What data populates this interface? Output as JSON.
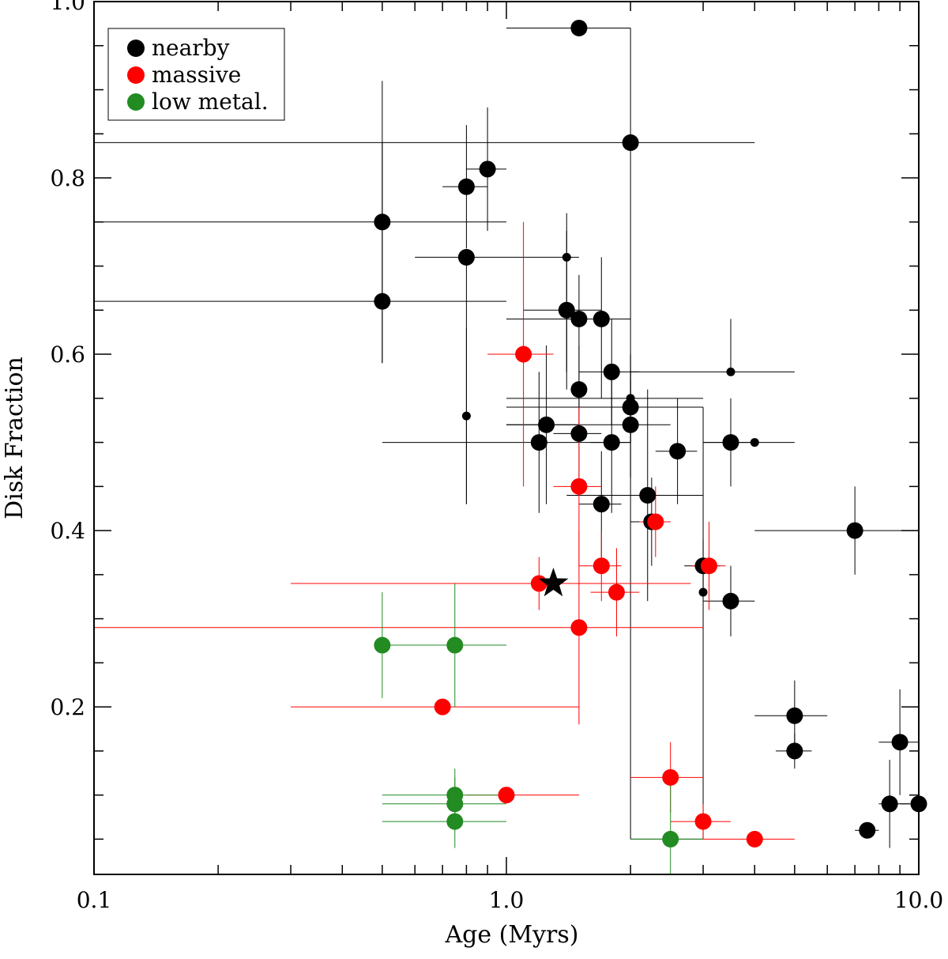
{
  "chart_data": {
    "type": "scatter",
    "title": "",
    "xlabel": "Age (Myrs)",
    "ylabel": "Disk Fraction",
    "xscale": "log",
    "xlim": [
      0.1,
      10.0
    ],
    "ylim": [
      0.01,
      1.0
    ],
    "x_ticks": [
      {
        "value": 0.1,
        "label": "0.1"
      },
      {
        "value": 1.0,
        "label": "1.0"
      },
      {
        "value": 10.0,
        "label": "10.0"
      }
    ],
    "y_ticks": [
      {
        "value": 0.2,
        "label": "0.2"
      },
      {
        "value": 0.4,
        "label": "0.4"
      },
      {
        "value": 0.6,
        "label": "0.6"
      },
      {
        "value": 0.8,
        "label": "0.8"
      },
      {
        "value": 1.0,
        "label": "1.0"
      }
    ],
    "legend": {
      "position": "top-left",
      "entries": [
        {
          "label": "nearby",
          "color": "#000000"
        },
        {
          "label": "massive",
          "color": "#ff0000"
        },
        {
          "label": "low metal.",
          "color": "#228b22"
        }
      ]
    },
    "series": [
      {
        "name": "nearby",
        "color": "#000000",
        "points": [
          {
            "x": 1.5,
            "y": 0.97,
            "xerr": [
              1.0,
              2.0
            ],
            "yerr": [
              0.97,
              0.97
            ],
            "size": "large"
          },
          {
            "x": 2.0,
            "y": 0.84,
            "xerr": [
              0.1,
              4.0
            ],
            "yerr": [
              0.84,
              0.84
            ],
            "size": "large"
          },
          {
            "x": 0.5,
            "y": 0.75,
            "xerr": [
              0.1,
              1.0
            ],
            "yerr": [
              0.59,
              0.91
            ],
            "size": "large"
          },
          {
            "x": 0.5,
            "y": 0.66,
            "xerr": [
              0.1,
              1.0
            ],
            "yerr": [
              0.59,
              0.84
            ],
            "size": "large"
          },
          {
            "x": 0.8,
            "y": 0.79,
            "xerr": [
              0.7,
              0.9
            ],
            "yerr": [
              0.72,
              0.86
            ],
            "size": "large"
          },
          {
            "x": 0.9,
            "y": 0.81,
            "xerr": [
              0.8,
              1.0
            ],
            "yerr": [
              0.74,
              0.88
            ],
            "size": "large"
          },
          {
            "x": 0.8,
            "y": 0.71,
            "xerr": [
              0.6,
              1.5
            ],
            "yerr": [
              0.43,
              0.71
            ],
            "size": "large"
          },
          {
            "x": 0.8,
            "y": 0.53,
            "xerr": [
              0.8,
              0.8
            ],
            "yerr": [
              0.43,
              0.63
            ],
            "size": "small"
          },
          {
            "x": 1.4,
            "y": 0.71,
            "xerr": [
              1.4,
              1.4
            ],
            "yerr": [
              0.58,
              0.76
            ],
            "size": "small"
          },
          {
            "x": 1.4,
            "y": 0.65,
            "xerr": [
              1.1,
              1.7
            ],
            "yerr": [
              0.56,
              0.74
            ],
            "size": "large"
          },
          {
            "x": 1.5,
            "y": 0.64,
            "xerr": [
              1.0,
              2.0
            ],
            "yerr": [
              0.57,
              0.69
            ],
            "size": "large"
          },
          {
            "x": 1.7,
            "y": 0.64,
            "xerr": [
              1.2,
              2.0
            ],
            "yerr": [
              0.55,
              0.71
            ],
            "size": "large"
          },
          {
            "x": 1.8,
            "y": 0.58,
            "xerr": [
              1.5,
              2.1
            ],
            "yerr": [
              0.52,
              0.64
            ],
            "size": "large"
          },
          {
            "x": 1.5,
            "y": 0.56,
            "xerr": [
              1.5,
              1.5
            ],
            "yerr": [
              0.51,
              0.61
            ],
            "size": "large"
          },
          {
            "x": 1.25,
            "y": 0.52,
            "xerr": [
              1.0,
              1.5
            ],
            "yerr": [
              0.43,
              0.61
            ],
            "size": "large"
          },
          {
            "x": 1.2,
            "y": 0.5,
            "xerr": [
              0.5,
              2.0
            ],
            "yerr": [
              0.42,
              0.58
            ],
            "size": "large"
          },
          {
            "x": 1.5,
            "y": 0.51,
            "xerr": [
              1.3,
              1.7
            ],
            "yerr": [
              0.46,
              0.56
            ],
            "size": "large"
          },
          {
            "x": 1.8,
            "y": 0.5,
            "xerr": [
              1.6,
              2.0
            ],
            "yerr": [
              0.42,
              0.58
            ],
            "size": "large"
          },
          {
            "x": 2.0,
            "y": 0.55,
            "xerr": [
              1.0,
              3.0
            ],
            "yerr": [
              0.5,
              0.6
            ],
            "size": "small"
          },
          {
            "x": 2.0,
            "y": 0.54,
            "xerr": [
              1.0,
              3.0
            ],
            "yerr": [
              0.5,
              0.58
            ],
            "size": "large"
          },
          {
            "x": 2.0,
            "y": 0.52,
            "xerr": [
              1.0,
              2.5
            ],
            "yerr": [
              0.46,
              0.57
            ],
            "size": "large"
          },
          {
            "x": 2.6,
            "y": 0.49,
            "xerr": [
              2.3,
              2.9
            ],
            "yerr": [
              0.43,
              0.55
            ],
            "size": "large"
          },
          {
            "x": 2.2,
            "y": 0.44,
            "xerr": [
              1.4,
              3.0
            ],
            "yerr": [
              0.32,
              0.56
            ],
            "size": "large"
          },
          {
            "x": 1.7,
            "y": 0.43,
            "xerr": [
              1.5,
              1.9
            ],
            "yerr": [
              0.37,
              0.49
            ],
            "size": "large"
          },
          {
            "x": 2.25,
            "y": 0.41,
            "xerr": [
              2.0,
              2.5
            ],
            "yerr": [
              0.36,
              0.46
            ],
            "size": "large"
          },
          {
            "x": 3.5,
            "y": 0.58,
            "xerr": [
              2.0,
              5.0
            ],
            "yerr": [
              0.58,
              0.64
            ],
            "size": "small"
          },
          {
            "x": 3.5,
            "y": 0.5,
            "xerr": [
              3.0,
              4.0
            ],
            "yerr": [
              0.45,
              0.55
            ],
            "size": "large"
          },
          {
            "x": 4.0,
            "y": 0.5,
            "xerr": [
              3.0,
              5.0
            ],
            "yerr": [
              0.5,
              0.5
            ],
            "size": "small"
          },
          {
            "x": 3.0,
            "y": 0.36,
            "xerr": [
              2.7,
              3.3
            ],
            "yerr": [
              0.33,
              0.39
            ],
            "size": "large"
          },
          {
            "x": 3.0,
            "y": 0.33,
            "xerr": [
              3.0,
              3.0
            ],
            "yerr": [
              0.33,
              0.36
            ],
            "size": "small"
          },
          {
            "x": 3.5,
            "y": 0.32,
            "xerr": [
              3.0,
              4.0
            ],
            "yerr": [
              0.28,
              0.36
            ],
            "size": "large"
          },
          {
            "x": 7.0,
            "y": 0.4,
            "xerr": [
              4.0,
              10.0
            ],
            "yerr": [
              0.35,
              0.45
            ],
            "size": "large"
          },
          {
            "x": 5.0,
            "y": 0.19,
            "xerr": [
              4.0,
              6.0
            ],
            "yerr": [
              0.15,
              0.23
            ],
            "size": "large"
          },
          {
            "x": 5.0,
            "y": 0.15,
            "xerr": [
              4.5,
              5.5
            ],
            "yerr": [
              0.13,
              0.17
            ],
            "size": "large"
          },
          {
            "x": 9.0,
            "y": 0.16,
            "xerr": [
              8.0,
              10.0
            ],
            "yerr": [
              0.1,
              0.22
            ],
            "size": "large"
          },
          {
            "x": 8.5,
            "y": 0.09,
            "xerr": [
              8.0,
              9.5
            ],
            "yerr": [
              0.04,
              0.14
            ],
            "size": "large"
          },
          {
            "x": 10.0,
            "y": 0.09,
            "xerr": [
              9.0,
              10.0
            ],
            "yerr": [
              0.09,
              0.09
            ],
            "size": "large"
          },
          {
            "x": 7.5,
            "y": 0.06,
            "xerr": [
              7.0,
              8.0
            ],
            "yerr": [
              0.06,
              0.06
            ],
            "size": "large"
          }
        ]
      },
      {
        "name": "massive",
        "color": "#ff0000",
        "points": [
          {
            "x": 1.1,
            "y": 0.6,
            "xerr": [
              0.9,
              1.3
            ],
            "yerr": [
              0.45,
              0.75
            ],
            "size": "large"
          },
          {
            "x": 1.5,
            "y": 0.45,
            "xerr": [
              1.3,
              1.7
            ],
            "yerr": [
              0.36,
              0.54
            ],
            "size": "large"
          },
          {
            "x": 2.3,
            "y": 0.41,
            "xerr": [
              2.1,
              2.5
            ],
            "yerr": [
              0.37,
              0.45
            ],
            "size": "large"
          },
          {
            "x": 1.7,
            "y": 0.36,
            "xerr": [
              1.5,
              1.9
            ],
            "yerr": [
              0.32,
              0.4
            ],
            "size": "large"
          },
          {
            "x": 3.1,
            "y": 0.36,
            "xerr": [
              2.8,
              3.4
            ],
            "yerr": [
              0.31,
              0.41
            ],
            "size": "large"
          },
          {
            "x": 1.2,
            "y": 0.34,
            "xerr": [
              0.3,
              2.8
            ],
            "yerr": [
              0.31,
              0.37
            ],
            "size": "large"
          },
          {
            "x": 1.85,
            "y": 0.33,
            "xerr": [
              1.6,
              2.1
            ],
            "yerr": [
              0.28,
              0.38
            ],
            "size": "large"
          },
          {
            "x": 1.5,
            "y": 0.29,
            "xerr": [
              0.1,
              3.0
            ],
            "yerr": [
              0.18,
              0.4
            ],
            "size": "large"
          },
          {
            "x": 0.7,
            "y": 0.2,
            "xerr": [
              0.3,
              1.5
            ],
            "yerr": [
              0.2,
              0.2
            ],
            "size": "large"
          },
          {
            "x": 1.0,
            "y": 0.1,
            "xerr": [
              0.8,
              1.5
            ],
            "yerr": [
              0.1,
              0.1
            ],
            "size": "large"
          },
          {
            "x": 2.5,
            "y": 0.12,
            "xerr": [
              2.0,
              3.0
            ],
            "yerr": [
              0.08,
              0.16
            ],
            "size": "large"
          },
          {
            "x": 3.0,
            "y": 0.07,
            "xerr": [
              2.5,
              3.5
            ],
            "yerr": [
              0.05,
              0.09
            ],
            "size": "large"
          },
          {
            "x": 4.0,
            "y": 0.05,
            "xerr": [
              3.0,
              5.0
            ],
            "yerr": [
              0.05,
              0.05
            ],
            "size": "large"
          }
        ]
      },
      {
        "name": "low metal.",
        "color": "#228b22",
        "points": [
          {
            "x": 0.5,
            "y": 0.27,
            "xerr": [
              0.5,
              1.0
            ],
            "yerr": [
              0.21,
              0.33
            ],
            "size": "large"
          },
          {
            "x": 0.75,
            "y": 0.27,
            "xerr": [
              0.5,
              1.0
            ],
            "yerr": [
              0.2,
              0.34
            ],
            "size": "large"
          },
          {
            "x": 0.75,
            "y": 0.1,
            "xerr": [
              0.5,
              1.0
            ],
            "yerr": [
              0.07,
              0.13
            ],
            "size": "large"
          },
          {
            "x": 0.75,
            "y": 0.09,
            "xerr": [
              0.5,
              1.0
            ],
            "yerr": [
              0.06,
              0.12
            ],
            "size": "large"
          },
          {
            "x": 0.75,
            "y": 0.07,
            "xerr": [
              0.5,
              1.0
            ],
            "yerr": [
              0.04,
              0.1
            ],
            "size": "large"
          },
          {
            "x": 2.5,
            "y": 0.05,
            "xerr": [
              2.0,
              3.0
            ],
            "yerr": [
              0.01,
              0.12
            ],
            "size": "large"
          }
        ]
      }
    ],
    "highlight": {
      "marker": "star",
      "x": 1.3,
      "y": 0.34,
      "color": "#000000"
    },
    "annotations": [
      {
        "type": "bracket",
        "xerr": [
          2.0,
          2.0
        ],
        "yerr": [
          0.05,
          0.97
        ],
        "color": "#000000"
      },
      {
        "type": "bracket",
        "xerr": [
          2.0,
          3.0
        ],
        "yerr": [
          0.05,
          0.05
        ],
        "color": "#000000"
      },
      {
        "type": "bracket",
        "xerr": [
          3.0,
          3.0
        ],
        "yerr": [
          0.05,
          0.54
        ],
        "color": "#000000"
      }
    ]
  }
}
